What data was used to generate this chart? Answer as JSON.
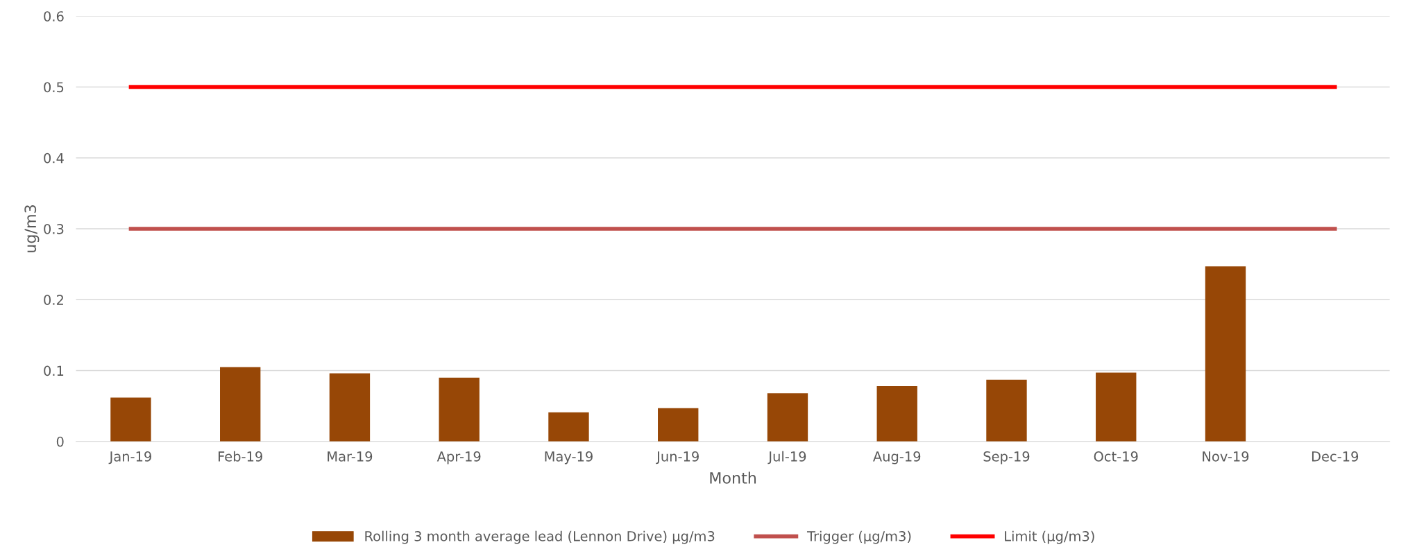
{
  "chart_data": {
    "type": "bar",
    "xlabel": "Month",
    "ylabel": "ug/m3",
    "categories": [
      "Jan-19",
      "Feb-19",
      "Mar-19",
      "Apr-19",
      "May-19",
      "Jun-19",
      "Jul-19",
      "Aug-19",
      "Sep-19",
      "Oct-19",
      "Nov-19",
      "Dec-19"
    ],
    "series": [
      {
        "name": "Rolling 3 month average lead (Lennon Drive) µg/m3",
        "color": "#974706",
        "values": [
          0.062,
          0.105,
          0.096,
          0.09,
          0.041,
          0.047,
          0.068,
          0.078,
          0.087,
          0.097,
          0.247,
          null
        ]
      },
      {
        "name": "Trigger (µg/m3)",
        "type": "line",
        "color": "#c0504d",
        "values": [
          0.3,
          0.3,
          0.3,
          0.3,
          0.3,
          0.3,
          0.3,
          0.3,
          0.3,
          0.3,
          0.3,
          0.3
        ]
      },
      {
        "name": "Limit (µg/m3)",
        "type": "line",
        "color": "#ff0000",
        "values": [
          0.5,
          0.5,
          0.5,
          0.5,
          0.5,
          0.5,
          0.5,
          0.5,
          0.5,
          0.5,
          0.5,
          0.5
        ]
      }
    ],
    "ylim": [
      0,
      0.6
    ],
    "yticks": [
      {
        "value": 0,
        "label": "0"
      },
      0.1,
      0.2,
      0.3,
      0.4,
      0.5,
      0.6
    ],
    "grid": "y",
    "legend": "bottom"
  }
}
